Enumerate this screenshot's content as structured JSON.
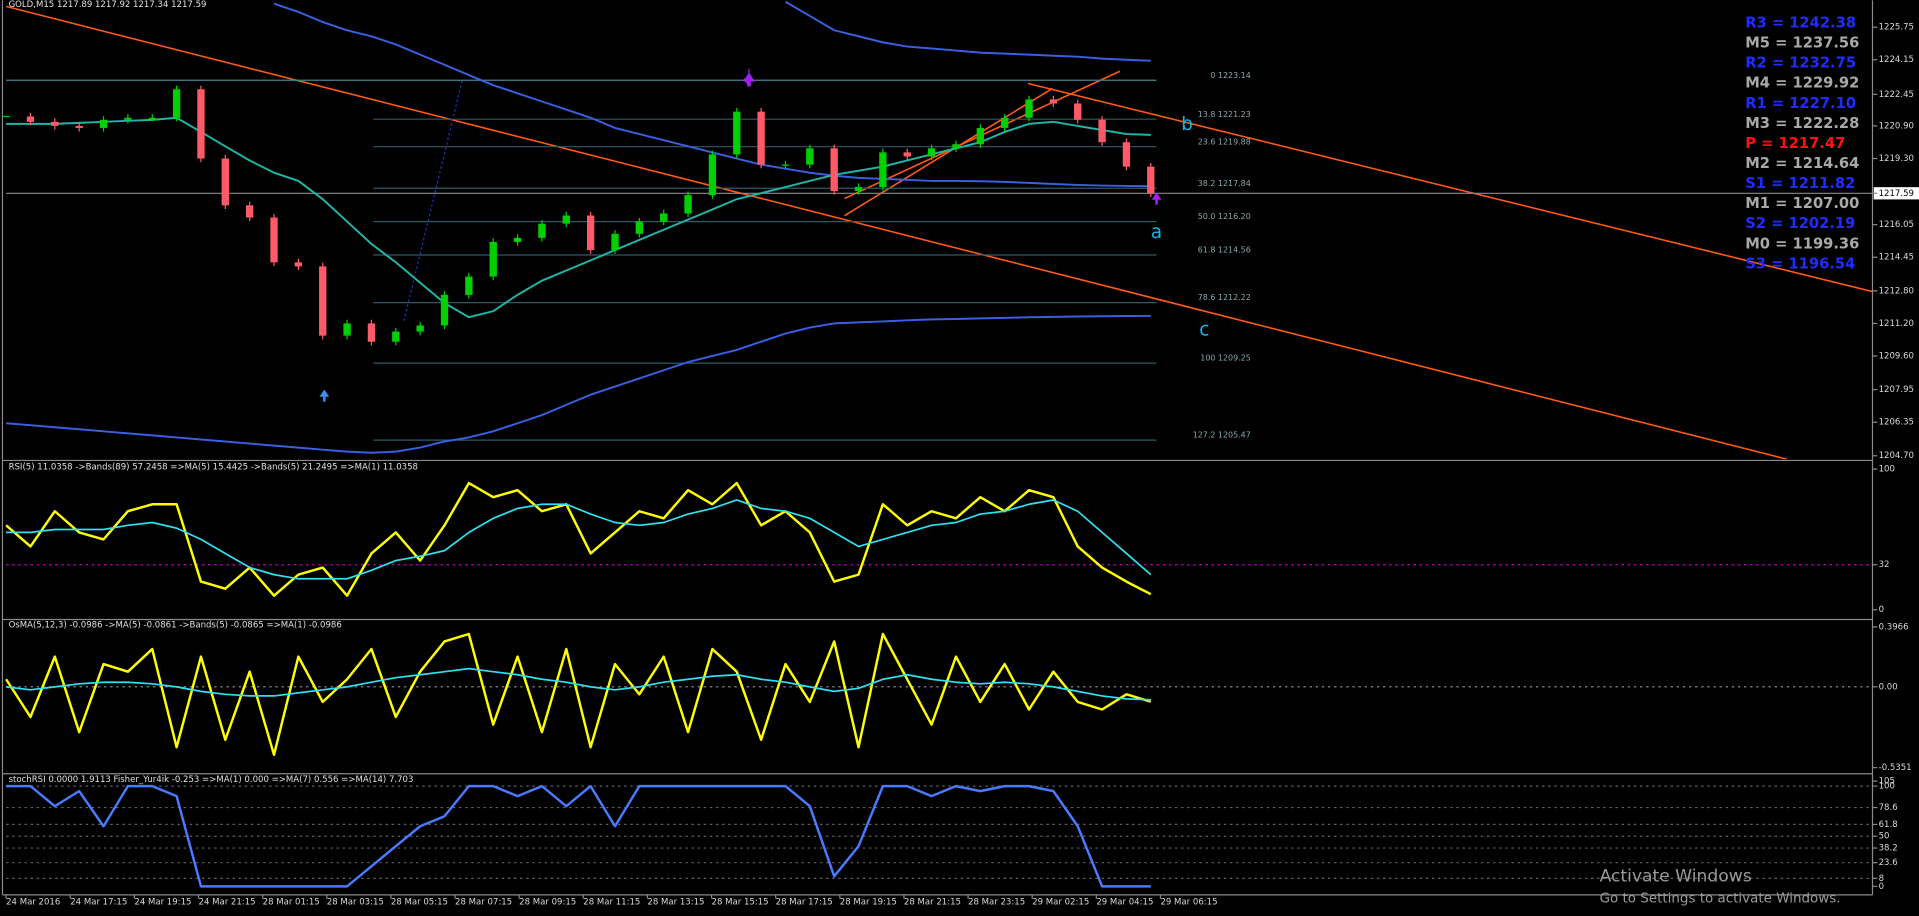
{
  "chart_data": [
    {
      "type": "candlestick",
      "title": "GOLD,M15  1217.89 1217.92 1217.34 1217.59",
      "up_color": "#00d000",
      "down_color": "#ff5a6a",
      "values": [
        1221.36,
        1221.1,
        1220.9,
        1220.8,
        1221.2,
        1221.3,
        1221.3,
        1222.7,
        1219.3,
        1217.0,
        1216.4,
        1214.2,
        1214.0,
        1210.6,
        1211.2,
        1210.3,
        1210.8,
        1211.1,
        1212.6,
        1213.5,
        1215.2,
        1215.4,
        1216.1,
        1216.5,
        1214.8,
        1215.6,
        1216.2,
        1216.6,
        1217.5,
        1219.5,
        1221.6,
        1219.0,
        1219.0,
        1219.8,
        1217.7,
        1217.9,
        1219.6,
        1219.4,
        1219.8,
        1220.0,
        1220.8,
        1221.3,
        1222.2,
        1222.0,
        1221.2,
        1220.1,
        1218.9,
        1217.59
      ],
      "series": [
        {
          "color": "#3a5fe0",
          "values": [
            null,
            null,
            null,
            null,
            null,
            null,
            null,
            null,
            null,
            null,
            null,
            1226.9,
            1226.5,
            1226.0,
            1225.6,
            1225.3,
            1224.9,
            1224.4,
            1223.9,
            1223.4,
            1222.9,
            1222.5,
            1222.1,
            1221.7,
            1221.3,
            1220.8,
            1220.5,
            1220.2,
            1219.9,
            1219.6,
            1219.3,
            1219.0,
            1218.8,
            1218.6,
            1218.45,
            1218.35,
            1218.3,
            1218.25,
            1218.2,
            1218.2,
            1218.18,
            1218.15,
            1218.1,
            1218.05,
            1218.0,
            1217.97,
            1217.95,
            1217.94
          ]
        },
        {
          "color": "#3a5fe0",
          "values": [
            null,
            null,
            null,
            null,
            null,
            null,
            null,
            null,
            null,
            null,
            null,
            null,
            null,
            null,
            null,
            null,
            null,
            null,
            null,
            null,
            null,
            null,
            null,
            null,
            null,
            null,
            null,
            null,
            null,
            null,
            null,
            null,
            1227.0,
            1226.3,
            1225.6,
            1225.3,
            1225.0,
            1224.8,
            1224.7,
            1224.6,
            1224.5,
            1224.45,
            1224.4,
            1224.35,
            1224.3,
            1224.2,
            1224.15,
            1224.1
          ]
        },
        {
          "color": "#3a5fe0",
          "values": [
            1206.3,
            1206.2,
            1206.1,
            1206.0,
            1205.9,
            1205.8,
            1205.7,
            1205.6,
            1205.5,
            1205.4,
            1205.3,
            1205.2,
            1205.1,
            1205.0,
            1204.9,
            1204.85,
            1204.9,
            1205.1,
            1205.4,
            1205.6,
            1205.9,
            1206.3,
            1206.7,
            1207.2,
            1207.7,
            1208.1,
            1208.5,
            1208.9,
            1209.3,
            1209.6,
            1209.9,
            1210.3,
            1210.7,
            1211.0,
            1211.2,
            1211.25,
            1211.3,
            1211.35,
            1211.4,
            1211.42,
            1211.45,
            1211.47,
            1211.5,
            1211.52,
            1211.54,
            1211.55,
            1211.56,
            1211.57
          ]
        },
        {
          "color": "#1fb5a8",
          "values": [
            1221.0,
            1221.0,
            1221.0,
            1221.05,
            1221.1,
            1221.15,
            1221.2,
            1221.3,
            1220.6,
            1219.9,
            1219.2,
            1218.6,
            1218.2,
            1217.3,
            1216.2,
            1215.1,
            1214.2,
            1213.2,
            1212.2,
            1211.5,
            1211.8,
            1212.6,
            1213.3,
            1213.8,
            1214.3,
            1214.8,
            1215.3,
            1215.8,
            1216.3,
            1216.8,
            1217.3,
            1217.6,
            1217.9,
            1218.2,
            1218.5,
            1218.7,
            1218.9,
            1219.2,
            1219.5,
            1219.8,
            1220.1,
            1220.6,
            1221.0,
            1221.1,
            1220.9,
            1220.7,
            1220.5,
            1220.46
          ]
        }
      ],
      "ylim": [
        1204.53,
        1227.07
      ],
      "yticks": [
        {
          "value": 1225.75,
          "label": "1225.75"
        },
        {
          "value": 1224.15,
          "label": "1224.15"
        },
        {
          "value": 1222.45,
          "label": "1222.45"
        },
        {
          "value": 1220.9,
          "label": "1220.90"
        },
        {
          "value": 1219.3,
          "label": "1219.30"
        },
        {
          "value": 1217.59,
          "label": "1217.59"
        },
        {
          "value": 1216.05,
          "label": "1216.05"
        },
        {
          "value": 1214.45,
          "label": "1214.45"
        },
        {
          "value": 1212.8,
          "label": "1212.80"
        },
        {
          "value": 1211.2,
          "label": "1211.20"
        },
        {
          "value": 1209.6,
          "label": "1209.60"
        },
        {
          "value": 1207.95,
          "label": "1207.95"
        },
        {
          "value": 1206.35,
          "label": "1206.35"
        },
        {
          "value": 1204.7,
          "label": "1204.70"
        }
      ],
      "price_line": 1217.59,
      "fib_levels": [
        {
          "label": "0 1223.14",
          "price": 1223.14
        },
        {
          "label": "13.8 1221.23",
          "price": 1221.23
        },
        {
          "label": "23.6 1219.88",
          "price": 1219.88
        },
        {
          "label": "38.2 1217.84",
          "price": 1217.84
        },
        {
          "label": "50.0 1216.20",
          "price": 1216.2
        },
        {
          "label": "61.8 1214.56",
          "price": 1214.56
        },
        {
          "label": "78.6 1212.22",
          "price": 1212.22
        },
        {
          "label": "100 1209.25",
          "price": 1209.25
        },
        {
          "label": "127.2 1205.47",
          "price": 1205.47
        }
      ],
      "pivots": [
        {
          "label": "R3 = 1242.38",
          "color": "#1e2cff"
        },
        {
          "label": "M5 = 1237.56",
          "color": "#a8a8a8"
        },
        {
          "label": "R2 = 1232.75",
          "color": "#1e2cff"
        },
        {
          "label": "M4 = 1229.92",
          "color": "#a8a8a8"
        },
        {
          "label": "R1 = 1227.10",
          "color": "#1e2cff"
        },
        {
          "label": "M3 = 1222.28",
          "color": "#a8a8a8"
        },
        {
          "label": "P  = 1217.47",
          "color": "#ff1010"
        },
        {
          "label": "M2 = 1214.64",
          "color": "#a8a8a8"
        },
        {
          "label": "S1 = 1211.82",
          "color": "#1e2cff"
        },
        {
          "label": "M1 = 1207.00",
          "color": "#a8a8a8"
        },
        {
          "label": "S2 = 1202.19",
          "color": "#1e2cff"
        },
        {
          "label": "M0 = 1199.36",
          "color": "#a8a8a8"
        },
        {
          "label": "S3 = 1196.54",
          "color": "#1e2cff"
        }
      ],
      "annotations": [
        "a",
        "b",
        "c"
      ]
    },
    {
      "type": "line",
      "title": "RSI(5) 11.0358  ->Bands(89) 57.2458  =>MA(5) 15.4425  ->Bands(5) 21.2495  =>MA(1) 11.0358",
      "series": [
        {
          "color": "#ffff00",
          "values": [
            60,
            45,
            70,
            55,
            50,
            70,
            75,
            75,
            20,
            15,
            30,
            10,
            25,
            30,
            10,
            40,
            55,
            35,
            60,
            90,
            80,
            85,
            70,
            75,
            40,
            55,
            70,
            65,
            85,
            75,
            90,
            60,
            70,
            55,
            20,
            25,
            75,
            60,
            70,
            65,
            80,
            70,
            85,
            80,
            45,
            30,
            20,
            11.04
          ]
        },
        {
          "color": "#30e0f0",
          "values": [
            55,
            55,
            57,
            57,
            57,
            60,
            62,
            58,
            50,
            40,
            30,
            25,
            22,
            22,
            22,
            28,
            35,
            38,
            42,
            55,
            65,
            72,
            75,
            75,
            68,
            62,
            60,
            62,
            68,
            72,
            78,
            72,
            70,
            65,
            55,
            45,
            50,
            55,
            60,
            62,
            68,
            70,
            75,
            78,
            70,
            55,
            40,
            25
          ]
        }
      ],
      "ylim": [
        0,
        100
      ],
      "yticks": [
        100,
        32,
        0
      ],
      "level_color": "#c000c0"
    },
    {
      "type": "line",
      "title": "OsMA(5,12,3) -0.0986  ->MA(5) -0.0861  ->Bands(5) -0.0865  =>MA(1) -0.0986",
      "series": [
        {
          "color": "#ffff00",
          "values": [
            0.05,
            -0.2,
            0.2,
            -0.3,
            0.15,
            0.1,
            0.25,
            -0.4,
            0.2,
            -0.35,
            0.1,
            -0.45,
            0.2,
            -0.1,
            0.05,
            0.25,
            -0.2,
            0.1,
            0.3,
            0.35,
            -0.25,
            0.2,
            -0.3,
            0.25,
            -0.4,
            0.15,
            -0.05,
            0.2,
            -0.3,
            0.25,
            0.1,
            -0.35,
            0.15,
            -0.1,
            0.3,
            -0.4,
            0.35,
            0.05,
            -0.25,
            0.2,
            -0.1,
            0.15,
            -0.15,
            0.1,
            -0.1,
            -0.15,
            -0.05,
            -0.0986
          ]
        },
        {
          "color": "#30e0f0",
          "values": [
            0.0,
            -0.02,
            0.0,
            0.02,
            0.03,
            0.03,
            0.02,
            0.0,
            -0.03,
            -0.05,
            -0.06,
            -0.06,
            -0.04,
            -0.02,
            0.0,
            0.03,
            0.06,
            0.08,
            0.1,
            0.12,
            0.1,
            0.08,
            0.05,
            0.03,
            0.0,
            -0.02,
            0.0,
            0.03,
            0.05,
            0.07,
            0.08,
            0.05,
            0.03,
            0.0,
            -0.03,
            -0.01,
            0.05,
            0.08,
            0.05,
            0.03,
            0.02,
            0.03,
            0.02,
            0.0,
            -0.03,
            -0.06,
            -0.08,
            -0.0861
          ]
        }
      ],
      "ylim": [
        -0.5351,
        0.3966
      ],
      "yticks": [
        0.3966,
        {
          "value": 0,
          "label": "0.00"
        },
        -0.5351
      ],
      "level_color": "#909090"
    },
    {
      "type": "line",
      "title": "stochRSI 0.0000 1.9113  Fisher_Yur4ik -0.253  =>MA(1) 0.000  =>MA(7) 0.556  =>MA(14) 7.703",
      "series": [
        {
          "color": "#4a7aff",
          "values": [
            100,
            100,
            80,
            95,
            60,
            100,
            100,
            90,
            0,
            0,
            0,
            0,
            0,
            0,
            0,
            20,
            40,
            60,
            70,
            100,
            100,
            90,
            100,
            80,
            100,
            60,
            100,
            100,
            100,
            100,
            100,
            100,
            100,
            80,
            10,
            40,
            100,
            100,
            90,
            100,
            95,
            100,
            100,
            95,
            60,
            0,
            0,
            0
          ]
        }
      ],
      "ylim": [
        0,
        105
      ],
      "yticks": [
        105,
        100,
        78.6,
        61.8,
        50,
        38.2,
        23.6,
        8,
        0
      ],
      "level_color": "#606060"
    }
  ],
  "time_axis": [
    "24 Mar 2016",
    "24 Mar 17:15",
    "24 Mar 19:15",
    "24 Mar 21:15",
    "28 Mar 01:15",
    "28 Mar 03:15",
    "28 Mar 05:15",
    "28 Mar 07:15",
    "28 Mar 09:15",
    "28 Mar 11:15",
    "28 Mar 13:15",
    "28 Mar 15:15",
    "28 Mar 17:15",
    "28 Mar 19:15",
    "28 Mar 21:15",
    "28 Mar 23:15",
    "29 Mar 02:15",
    "29 Mar 04:15",
    "29 Mar 06:15"
  ],
  "watermark": {
    "title": "Activate Windows",
    "subtitle": "Go to Settings to activate Windows."
  }
}
